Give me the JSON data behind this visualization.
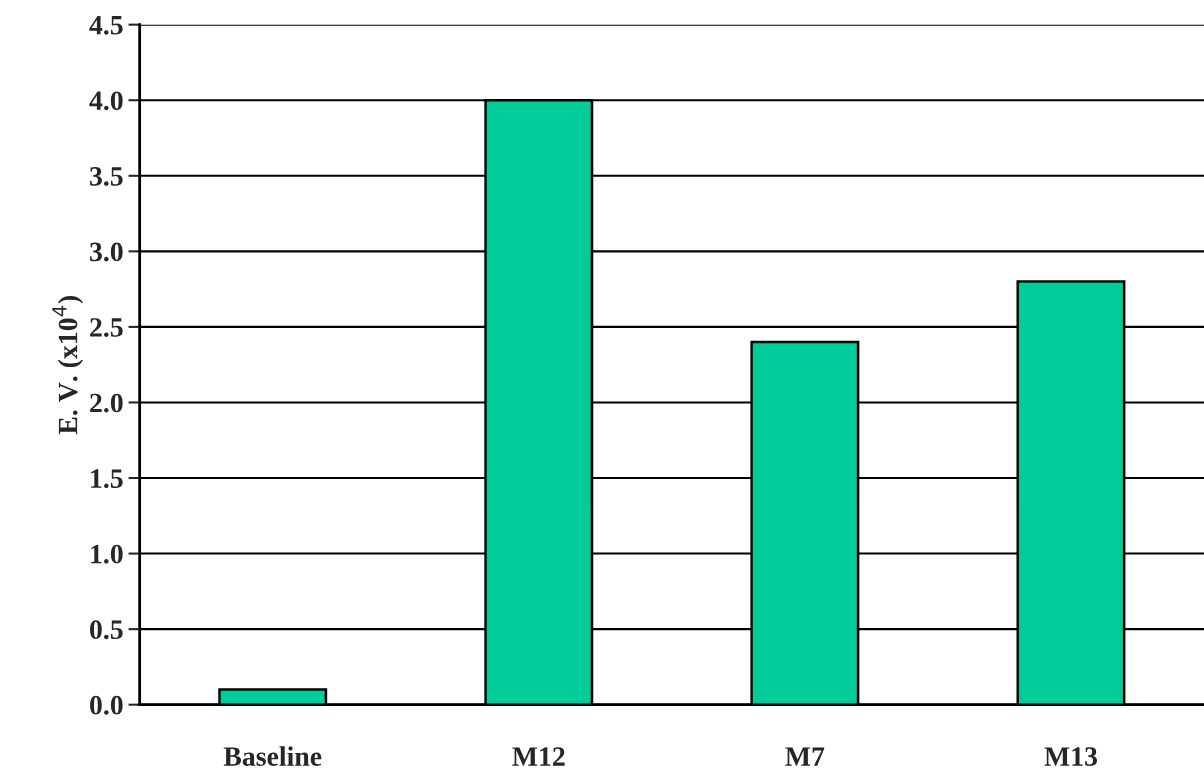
{
  "chart_data": {
    "type": "bar",
    "ylabel": "E. V. (x10$^{4}$)",
    "categories": [
      "Baseline",
      "M12",
      "M7",
      "M13"
    ],
    "values": [
      0.1,
      4.0,
      2.4,
      2.8
    ],
    "color": "#00cc99",
    "ylim": [
      0,
      4.5
    ],
    "yticks": [
      {
        "value": 0,
        "label": "0.0"
      },
      0.5,
      {
        "value": 1,
        "label": "1.0"
      },
      1.5,
      {
        "value": 2,
        "label": "2.0"
      },
      2.5,
      {
        "value": 3,
        "label": "3.0"
      },
      3.5,
      {
        "value": 4,
        "label": "4.0"
      },
      4.5
    ],
    "grid": "y",
    "legend": false
  }
}
